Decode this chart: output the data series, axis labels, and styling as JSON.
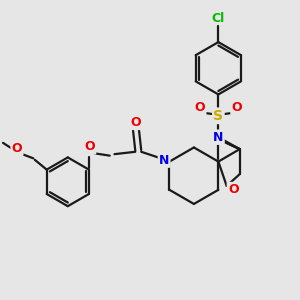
{
  "background_color": "#e6e6e6",
  "bond_color": "#1a1a1a",
  "bond_width": 1.6,
  "atom_colors": {
    "Cl": "#00bb00",
    "N": "#0000ee",
    "O": "#ee0000",
    "S": "#ccaa00",
    "C": "#1a1a1a"
  },
  "figsize": [
    3.0,
    3.0
  ],
  "dpi": 100
}
